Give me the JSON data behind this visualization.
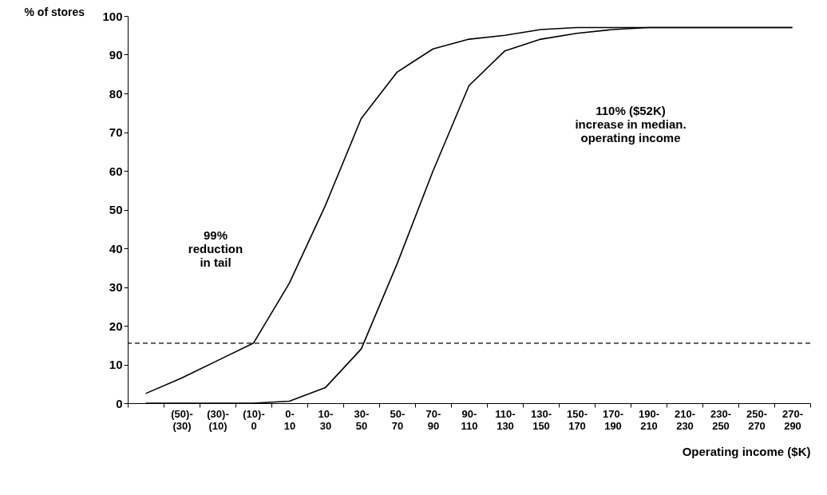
{
  "chart_data": {
    "type": "line",
    "xlabel": "Operating income ($K)",
    "ylabel": "% of stores",
    "categories": [
      null,
      "(50)-(30)",
      "(30)-(10)",
      "(10)-0",
      "0-10",
      "10-30",
      "30-50",
      "50-70",
      "70-90",
      "90-110",
      "110-130",
      "130-150",
      "150-170",
      "170-190",
      "190-210",
      "210-230",
      "230-250",
      "250-270",
      "270-290"
    ],
    "series": [
      {
        "color": "#000000",
        "values": [
          2.5,
          6.5,
          11,
          15.5,
          31,
          51,
          73.5,
          85.5,
          91.5,
          94,
          95,
          96.5,
          97,
          97,
          97,
          97,
          97,
          97,
          97
        ]
      },
      {
        "color": "#000000",
        "values": [
          0,
          0,
          0,
          0,
          0.5,
          4,
          14,
          36,
          60,
          82,
          91,
          94,
          95.5,
          96.5,
          97,
          97,
          97,
          97,
          97
        ]
      }
    ],
    "ylim": [
      0,
      100
    ],
    "yticks": [
      0,
      10,
      20,
      30,
      40,
      50,
      60,
      70,
      80,
      90,
      100
    ],
    "ref_lines": [
      {
        "axis": "y",
        "value": 15.5,
        "line_style": "dashed",
        "color": "#000000"
      }
    ],
    "annotations": [
      "99%\nreduction\nin tail",
      "110% ($52K)\nincrease in median.\noperating income"
    ],
    "grid": false,
    "marker": "none",
    "line_style": "solid"
  }
}
